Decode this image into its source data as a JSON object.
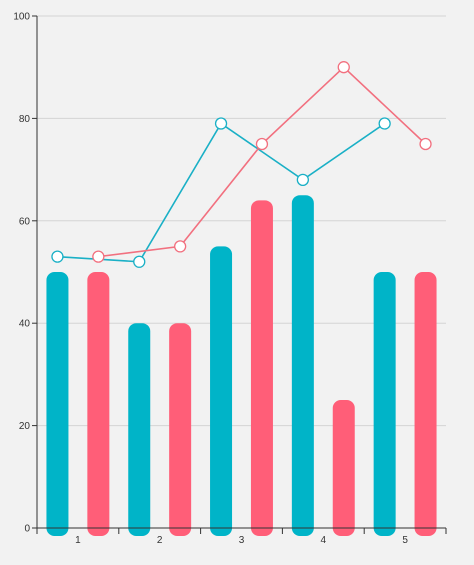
{
  "chart_data": {
    "type": "bar",
    "categories": [
      "1",
      "2",
      "3",
      "4",
      "5"
    ],
    "series": [
      {
        "kind": "bar",
        "color": "#00b4c8",
        "values": [
          50,
          40,
          55,
          65,
          50
        ]
      },
      {
        "kind": "bar",
        "color": "#ff5e78",
        "values": [
          50,
          40,
          64,
          25,
          50
        ]
      },
      {
        "kind": "line",
        "color": "#1ab0c6",
        "x": [
          0.25,
          1.25,
          2.25,
          3.25,
          4.25
        ],
        "values": [
          53,
          52,
          79,
          68,
          79
        ]
      },
      {
        "kind": "line",
        "color": "#f2707f",
        "x": [
          0.75,
          1.75,
          2.75,
          3.75,
          4.75
        ],
        "values": [
          53,
          55,
          75,
          90,
          75
        ]
      }
    ],
    "y_ticks": [
      "0",
      "20",
      "40",
      "60",
      "80",
      "100"
    ],
    "ylim": [
      0,
      100
    ],
    "grid": true,
    "xlabel": "",
    "ylabel": "",
    "title": ""
  }
}
